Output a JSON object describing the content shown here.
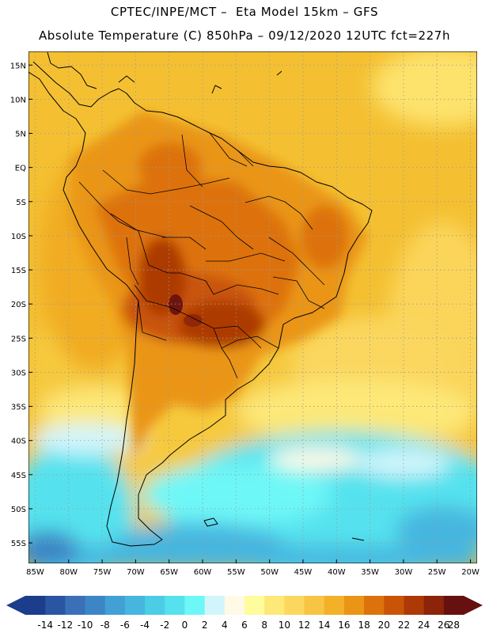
{
  "header": {
    "line1": "CPTEC/INPE/MCT –  Eta Model 15km – GFS",
    "line2": "Absolute Temperature (C) 850hPa – 09/12/2020 12UTC fct=227h"
  },
  "map": {
    "lat_labels": [
      "15N",
      "10N",
      "5N",
      "EQ",
      "5S",
      "10S",
      "15S",
      "20S",
      "25S",
      "30S",
      "35S",
      "40S",
      "45S",
      "50S",
      "55S"
    ],
    "lat_values": [
      15,
      10,
      5,
      0,
      -5,
      -10,
      -15,
      -20,
      -25,
      -30,
      -35,
      -40,
      -45,
      -50,
      -55
    ],
    "lon_labels": [
      "85W",
      "80W",
      "75W",
      "70W",
      "65W",
      "60W",
      "55W",
      "50W",
      "45W",
      "40W",
      "35W",
      "30W",
      "25W",
      "20W"
    ],
    "lon_values": [
      -85,
      -80,
      -75,
      -70,
      -65,
      -60,
      -55,
      -50,
      -45,
      -40,
      -35,
      -30,
      -25,
      -20
    ],
    "lat_range": [
      -58,
      17
    ],
    "lon_range": [
      -86,
      -19
    ]
  },
  "colorbar": {
    "labels": [
      "-14",
      "-12",
      "-10",
      "-8",
      "-6",
      "-4",
      "-2",
      "0",
      "2",
      "4",
      "6",
      "8",
      "10",
      "12",
      "14",
      "16",
      "18",
      "20",
      "22",
      "24",
      "26",
      "28"
    ],
    "colors": [
      "#1c3c8c",
      "#2a55a2",
      "#3a70b8",
      "#3d86c6",
      "#42a0d4",
      "#47b6df",
      "#4ccde6",
      "#55e2ee",
      "#6ef7f7",
      "#d2f5fb",
      "#fefae6",
      "#fefc9c",
      "#fde878",
      "#fbd75e",
      "#f7c443",
      "#f2b128",
      "#ea9516",
      "#dd720c",
      "#c95408",
      "#ad3a06",
      "#8c240a",
      "#661010"
    ]
  }
}
